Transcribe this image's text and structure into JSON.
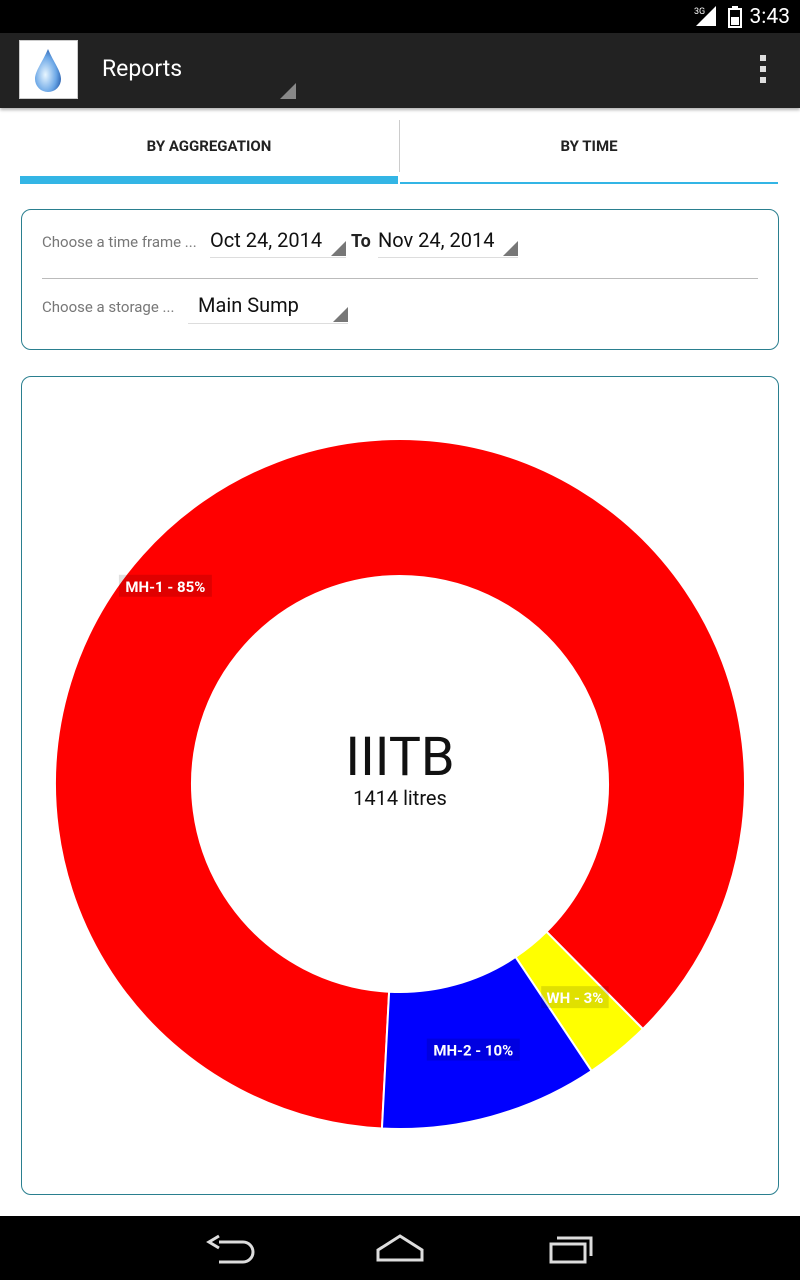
{
  "status_bar": {
    "time": "3:43",
    "network": "3G"
  },
  "action_bar": {
    "title": "Reports"
  },
  "tabs": [
    {
      "label": "BY AGGREGATION",
      "selected": true
    },
    {
      "label": "BY TIME",
      "selected": false
    }
  ],
  "filters": {
    "time_label": "Choose a time frame ...",
    "from_date": "Oct 24, 2014",
    "to_label": "To",
    "to_date": "Nov 24, 2014",
    "storage_label": "Choose a storage ...",
    "storage_value": "Main Sump"
  },
  "chart_data": {
    "type": "pie",
    "center_title": "IIITB",
    "center_subtitle": "1414 litres",
    "slices": [
      {
        "label": "MH-1 - 85%",
        "value": 85,
        "color": "#ff0000"
      },
      {
        "label": "MH-2 - 10%",
        "value": 10,
        "color": "#0000ff"
      },
      {
        "label": "WH - 3%",
        "value": 3,
        "color": "#ffff00"
      }
    ]
  },
  "colors": {
    "accent": "#33b5e5",
    "card_border": "#2a7f8f"
  }
}
